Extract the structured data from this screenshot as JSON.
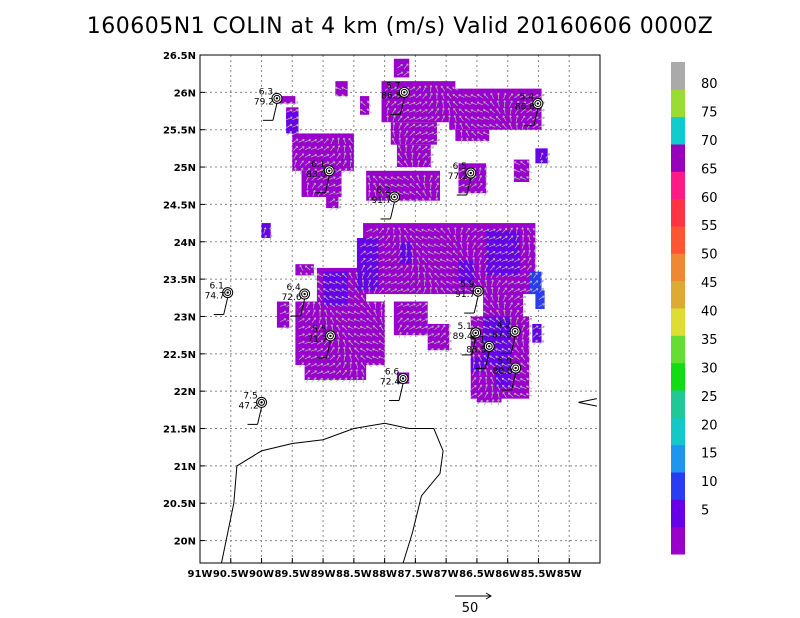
{
  "title": "160605N1  COLIN at 4 km (m/s) Valid 20160606  0000Z",
  "chart_data": {
    "type": "heatmap",
    "title": "160605N1  COLIN at 4 km (m/s) Valid 20160606  0000Z",
    "xlim": [
      -91.0,
      -84.5
    ],
    "ylim": [
      19.7,
      26.5
    ],
    "x_ticks": [
      {
        "v": -91.0,
        "label": "91W"
      },
      {
        "v": -90.5,
        "label": "90.5W"
      },
      {
        "v": -90.0,
        "label": "90W"
      },
      {
        "v": -89.5,
        "label": "89.5W"
      },
      {
        "v": -89.0,
        "label": "89W"
      },
      {
        "v": -88.5,
        "label": "88.5W"
      },
      {
        "v": -88.0,
        "label": "88W"
      },
      {
        "v": -87.5,
        "label": "87.5W"
      },
      {
        "v": -87.0,
        "label": "87W"
      },
      {
        "v": -86.5,
        "label": "86.5W"
      },
      {
        "v": -86.0,
        "label": "86W"
      },
      {
        "v": -85.5,
        "label": "85.5W"
      },
      {
        "v": -85.0,
        "label": "85W"
      }
    ],
    "y_ticks": [
      {
        "v": 20.0,
        "label": "20N"
      },
      {
        "v": 20.5,
        "label": "20.5N"
      },
      {
        "v": 21.0,
        "label": "21N"
      },
      {
        "v": 21.5,
        "label": "21.5N"
      },
      {
        "v": 22.0,
        "label": "22N"
      },
      {
        "v": 22.5,
        "label": "22.5N"
      },
      {
        "v": 23.0,
        "label": "23N"
      },
      {
        "v": 23.5,
        "label": "23.5N"
      },
      {
        "v": 24.0,
        "label": "24N"
      },
      {
        "v": 24.5,
        "label": "24.5N"
      },
      {
        "v": 25.0,
        "label": "25N"
      },
      {
        "v": 25.5,
        "label": "25.5N"
      },
      {
        "v": 26.0,
        "label": "26N"
      },
      {
        "v": 26.5,
        "label": "26.5N"
      }
    ],
    "grid": true,
    "colorbar": {
      "labels": [
        "5",
        "10",
        "15",
        "20",
        "25",
        "30",
        "35",
        "40",
        "45",
        "50",
        "55",
        "60",
        "65",
        "70",
        "75",
        "80"
      ],
      "colors": [
        "#9900cc",
        "#6600e6",
        "#2a3cf0",
        "#1e96f0",
        "#15c8c8",
        "#20c896",
        "#14dc14",
        "#66dd33",
        "#dddd33",
        "#ddaa33",
        "#ee8833",
        "#ff5533",
        "#ff3344",
        "#ff1a88",
        "#9900bb",
        "#11cccc",
        "#99dd33",
        "#aaaaaa"
      ]
    },
    "wind_regions": [
      {
        "level": "5",
        "cells": [
          [
            -89.75,
            25.85,
            -89.45,
            25.95
          ],
          [
            -89.6,
            25.6,
            -89.4,
            25.8
          ],
          [
            -88.8,
            25.95,
            -88.6,
            26.15
          ],
          [
            -88.4,
            25.7,
            -88.25,
            25.95
          ],
          [
            -87.85,
            26.2,
            -87.6,
            26.45
          ],
          [
            -88.05,
            25.6,
            -86.85,
            26.15
          ],
          [
            -87.9,
            25.3,
            -87.15,
            25.6
          ],
          [
            -86.95,
            25.5,
            -85.45,
            26.05
          ],
          [
            -86.85,
            25.35,
            -86.3,
            25.5
          ],
          [
            -89.5,
            24.95,
            -88.5,
            25.45
          ],
          [
            -89.35,
            24.6,
            -88.7,
            24.95
          ],
          [
            -88.95,
            24.45,
            -88.75,
            24.6
          ],
          [
            -88.3,
            24.55,
            -87.1,
            24.95
          ],
          [
            -87.8,
            25.0,
            -87.25,
            25.3
          ],
          [
            -86.8,
            24.65,
            -86.35,
            25.05
          ],
          [
            -85.9,
            24.8,
            -85.65,
            25.1
          ],
          [
            -88.35,
            23.3,
            -85.55,
            24.25
          ],
          [
            -89.1,
            23.15,
            -88.3,
            23.65
          ],
          [
            -89.45,
            23.55,
            -89.15,
            23.7
          ],
          [
            -89.75,
            22.85,
            -89.55,
            23.2
          ],
          [
            -89.45,
            22.35,
            -88.0,
            23.2
          ],
          [
            -89.3,
            22.15,
            -88.3,
            22.35
          ],
          [
            -87.85,
            22.75,
            -87.3,
            23.2
          ],
          [
            -87.3,
            22.55,
            -86.95,
            22.9
          ],
          [
            -86.4,
            23.0,
            -85.75,
            23.4
          ],
          [
            -86.6,
            21.9,
            -85.65,
            23.0
          ],
          [
            -86.5,
            21.85,
            -86.1,
            21.95
          ],
          [
            -87.8,
            22.1,
            -87.6,
            22.25
          ]
        ]
      },
      {
        "level": "10",
        "cells": [
          [
            -89.6,
            25.45,
            -89.4,
            25.75
          ],
          [
            -88.45,
            23.35,
            -88.1,
            24.05
          ],
          [
            -89.0,
            23.15,
            -88.6,
            23.6
          ],
          [
            -87.75,
            23.7,
            -87.55,
            24.0
          ],
          [
            -86.8,
            23.45,
            -86.55,
            23.75
          ],
          [
            -86.35,
            23.55,
            -85.8,
            24.15
          ],
          [
            -86.4,
            22.35,
            -85.95,
            23.0
          ],
          [
            -86.2,
            22.05,
            -85.95,
            22.35
          ],
          [
            -85.6,
            22.65,
            -85.45,
            22.9
          ],
          [
            -86.6,
            22.25,
            -86.4,
            22.45
          ],
          [
            -85.55,
            25.05,
            -85.35,
            25.25
          ],
          [
            -90.0,
            24.05,
            -89.85,
            24.25
          ]
        ]
      },
      {
        "level": "15",
        "cells": [
          [
            -85.65,
            23.3,
            -85.45,
            23.6
          ],
          [
            -85.55,
            23.1,
            -85.4,
            23.35
          ]
        ]
      }
    ],
    "observations": [
      {
        "lon": -89.75,
        "lat": 25.92,
        "label_top": "6.3",
        "label_bottom": "79.2"
      },
      {
        "lon": -87.68,
        "lat": 26.0,
        "label_top": "5.7",
        "label_bottom": "86.5"
      },
      {
        "lon": -85.51,
        "lat": 25.85,
        "label_top": "5.4",
        "label_bottom": "86.8"
      },
      {
        "lon": -88.9,
        "lat": 24.95,
        "label_top": "6.1",
        "label_bottom": "83.0"
      },
      {
        "lon": -86.6,
        "lat": 24.92,
        "label_top": "6.5",
        "label_bottom": "77.2"
      },
      {
        "lon": -87.84,
        "lat": 24.6,
        "label_top": "6.2",
        "label_bottom": "91.7"
      },
      {
        "lon": -90.55,
        "lat": 23.32,
        "label_top": "6.1",
        "label_bottom": "74.7"
      },
      {
        "lon": -89.3,
        "lat": 23.3,
        "label_top": "6.4",
        "label_bottom": "72.6"
      },
      {
        "lon": -86.48,
        "lat": 23.34,
        "label_top": "5.9",
        "label_bottom": "91.7"
      },
      {
        "lon": -88.88,
        "lat": 22.74,
        "label_top": "5.5",
        "label_bottom": "71.7"
      },
      {
        "lon": -86.52,
        "lat": 22.78,
        "label_top": "5.1",
        "label_bottom": "89.4"
      },
      {
        "lon": -85.88,
        "lat": 22.8,
        "label_top": "4.2",
        "label_bottom": "87.5"
      },
      {
        "lon": -86.3,
        "lat": 22.6,
        "label_top": "5.1",
        "label_bottom": "83.5"
      },
      {
        "lon": -85.87,
        "lat": 22.31,
        "label_top": "5.0",
        "label_bottom": "80.0"
      },
      {
        "lon": -87.7,
        "lat": 22.17,
        "label_top": "6.6",
        "label_bottom": "72.4"
      },
      {
        "lon": -90.0,
        "lat": 21.85,
        "label_top": "7.5",
        "label_bottom": "47.2"
      }
    ],
    "reference_vector": {
      "label": "50"
    }
  },
  "coastline": [
    [
      [
        -90.65,
        19.7
      ],
      [
        -90.45,
        20.5
      ],
      [
        -90.4,
        21.0
      ],
      [
        -90.0,
        21.2
      ],
      [
        -89.5,
        21.3
      ],
      [
        -89.0,
        21.35
      ],
      [
        -88.5,
        21.5
      ],
      [
        -88.0,
        21.57
      ],
      [
        -87.6,
        21.5
      ],
      [
        -87.2,
        21.5
      ],
      [
        -87.05,
        21.2
      ],
      [
        -87.1,
        20.9
      ],
      [
        -87.4,
        20.6
      ],
      [
        -87.55,
        20.1
      ],
      [
        -87.7,
        19.7
      ]
    ],
    [
      [
        -84.55,
        21.8
      ],
      [
        -84.85,
        21.85
      ],
      [
        -84.55,
        21.9
      ]
    ]
  ]
}
